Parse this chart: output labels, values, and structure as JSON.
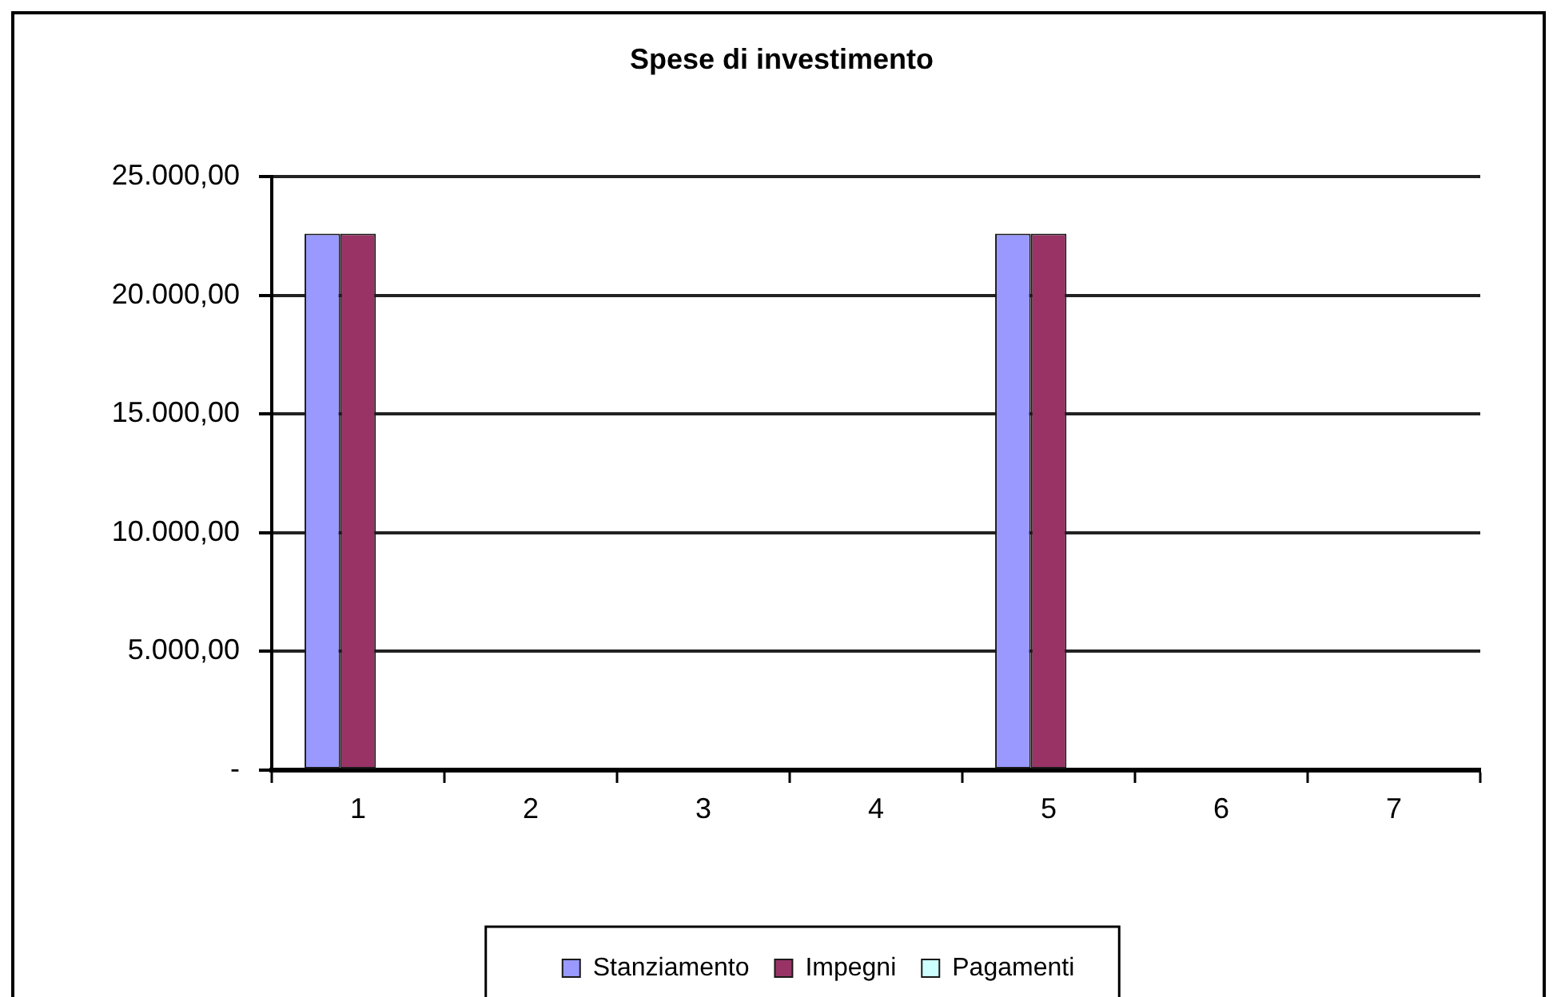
{
  "chart_data": {
    "type": "bar",
    "title": "Spese di investimento",
    "categories": [
      "1",
      "2",
      "3",
      "4",
      "5",
      "6",
      "7"
    ],
    "series": [
      {
        "name": "Stanziamento",
        "color": "#9999ff",
        "values": [
          22600,
          null,
          0,
          0,
          22600,
          0,
          0
        ]
      },
      {
        "name": "Impegni",
        "color": "#993366",
        "values": [
          22600,
          null,
          0,
          0,
          22600,
          null,
          null
        ]
      },
      {
        "name": "Pagamenti",
        "color": "#ccffff",
        "values": [
          0,
          null,
          0,
          0,
          0,
          0,
          0
        ]
      }
    ],
    "ylim": [
      0,
      25000
    ],
    "yticks": [
      {
        "value": 0,
        "label": "-"
      },
      {
        "value": 5000,
        "label": "5.000,00"
      },
      {
        "value": 10000,
        "label": "10.000,00"
      },
      {
        "value": 15000,
        "label": "15.000,00"
      },
      {
        "value": 20000,
        "label": "20.000,00"
      },
      {
        "value": 25000,
        "label": "25.000,00"
      }
    ],
    "grid": "y",
    "legend": "bottom"
  }
}
